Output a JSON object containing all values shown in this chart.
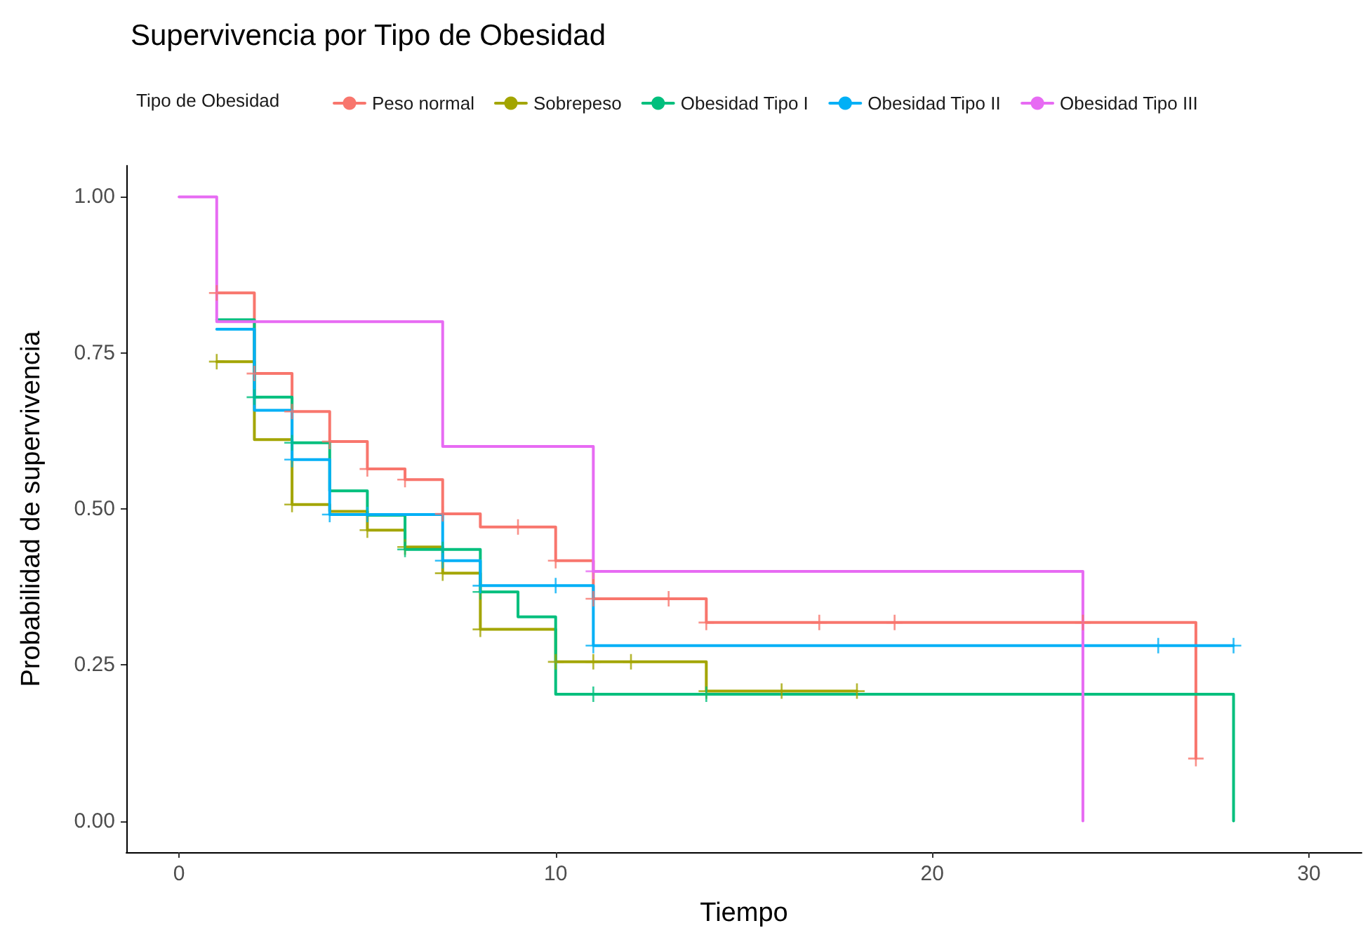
{
  "chart_data": {
    "type": "step",
    "title": "Supervivencia por Tipo de Obesidad",
    "xlabel": "Tiempo",
    "ylabel": "Probabilidad de supervivencia",
    "legend_title": "Tipo de Obesidad",
    "legend": "top",
    "grid": false,
    "marker": "none",
    "line_style": "solid",
    "xlim": [
      -1.4,
      31.4
    ],
    "xticks": [
      0,
      10,
      20,
      30
    ],
    "ylim": [
      -0.05,
      1.05
    ],
    "yticks": [
      {
        "value": 0,
        "label": "0.00"
      },
      {
        "value": 0.25,
        "label": "0.25"
      },
      {
        "value": 0.5,
        "label": "0.50"
      },
      {
        "value": 0.75,
        "label": "0.75"
      },
      {
        "value": 1,
        "label": "1.00"
      }
    ],
    "series": [
      {
        "name": "Peso normal",
        "color": "#f8766d",
        "x": [
          1,
          2,
          3,
          4,
          5,
          6,
          7,
          8,
          10,
          11,
          14,
          27
        ],
        "values": [
          0.846,
          0.717,
          0.656,
          0.608,
          0.564,
          0.547,
          0.492,
          0.471,
          0.417,
          0.356,
          0.318,
          0.1
        ]
      },
      {
        "name": "Sobrepeso",
        "color": "#a3a500",
        "x": [
          1,
          2,
          3,
          4,
          5,
          6,
          7,
          8,
          10,
          14,
          18
        ],
        "values": [
          0.736,
          0.611,
          0.507,
          0.496,
          0.466,
          0.439,
          0.397,
          0.307,
          0.255,
          0.208,
          0.208
        ]
      },
      {
        "name": "Obesidad Tipo I",
        "color": "#00bf7d",
        "x": [
          1,
          2,
          3,
          4,
          5,
          6,
          8,
          9,
          10,
          28
        ],
        "values": [
          0.803,
          0.679,
          0.606,
          0.529,
          0.49,
          0.435,
          0.367,
          0.327,
          0.203,
          0
        ]
      },
      {
        "name": "Obesidad Tipo II",
        "color": "#00b0f6",
        "x": [
          1,
          2,
          3,
          4,
          7,
          8,
          11,
          28
        ],
        "values": [
          0.788,
          0.658,
          0.579,
          0.491,
          0.417,
          0.377,
          0.281,
          0.281
        ]
      },
      {
        "name": "Obesidad Tipo III",
        "color": "#e76bf3",
        "x": [
          0,
          1,
          7,
          11,
          24
        ],
        "values": [
          1,
          0.8,
          0.6,
          0.4,
          0
        ]
      },
      {
        "type": "scatter",
        "marker": "cross",
        "color": "#f8766d",
        "x": [
          1,
          2,
          3,
          4,
          5,
          6,
          7,
          9,
          10,
          11,
          13,
          14,
          17,
          19,
          24,
          27
        ],
        "values": [
          0.846,
          0.717,
          0.656,
          0.608,
          0.564,
          0.547,
          0.492,
          0.471,
          0.417,
          0.356,
          0.356,
          0.318,
          0.318,
          0.318,
          0.318,
          0.1
        ]
      },
      {
        "type": "scatter",
        "marker": "cross",
        "color": "#a3a500",
        "x": [
          1,
          3,
          5,
          6,
          7,
          8,
          10,
          11,
          12,
          14,
          16,
          18
        ],
        "values": [
          0.736,
          0.507,
          0.466,
          0.439,
          0.397,
          0.307,
          0.255,
          0.255,
          0.255,
          0.208,
          0.208,
          0.208
        ]
      },
      {
        "type": "scatter",
        "marker": "cross",
        "color": "#00bf7d",
        "x": [
          2,
          3,
          6,
          7,
          8,
          11,
          14
        ],
        "values": [
          0.679,
          0.606,
          0.435,
          0.435,
          0.367,
          0.203,
          0.203
        ]
      },
      {
        "type": "scatter",
        "marker": "cross",
        "color": "#00b0f6",
        "x": [
          3,
          4,
          5,
          7,
          8,
          10,
          11,
          26,
          28
        ],
        "values": [
          0.579,
          0.491,
          0.491,
          0.417,
          0.377,
          0.377,
          0.281,
          0.281,
          0.281
        ]
      },
      {
        "type": "scatter",
        "marker": "cross",
        "color": "#e76bf3",
        "x": [
          11
        ],
        "values": [
          0.4
        ]
      }
    ]
  }
}
